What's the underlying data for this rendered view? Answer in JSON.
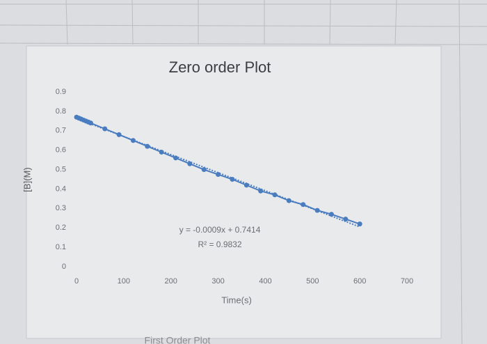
{
  "chart_data": {
    "type": "scatter-line",
    "title": "Zero order Plot",
    "x_label": "Time(s)",
    "y_label": "[B](M)",
    "annotations": [
      "y = -0.0009x + 0.7414",
      "R² = 0.9832"
    ],
    "footer_text": "First Order Plot",
    "color": "#4a7cc0",
    "trendline": true,
    "x": [
      0,
      5,
      10,
      15,
      20,
      25,
      30,
      60,
      90,
      120,
      150,
      180,
      210,
      240,
      270,
      300,
      330,
      360,
      390,
      420,
      450,
      480,
      510,
      540,
      570,
      600
    ],
    "values": [
      0.77,
      0.765,
      0.76,
      0.755,
      0.75,
      0.745,
      0.74,
      0.71,
      0.68,
      0.65,
      0.62,
      0.59,
      0.56,
      0.53,
      0.5,
      0.475,
      0.45,
      0.42,
      0.39,
      0.37,
      0.34,
      0.32,
      0.29,
      0.27,
      0.245,
      0.22
    ],
    "xlim": [
      0,
      700
    ],
    "xticks": [
      0,
      100,
      200,
      300,
      400,
      500,
      600,
      700
    ],
    "ylim": [
      0,
      0.9
    ],
    "yticks": [
      0,
      0.1,
      0.2,
      0.3,
      0.4,
      0.5,
      0.6,
      0.7,
      0.8,
      0.9
    ],
    "grid": false
  }
}
